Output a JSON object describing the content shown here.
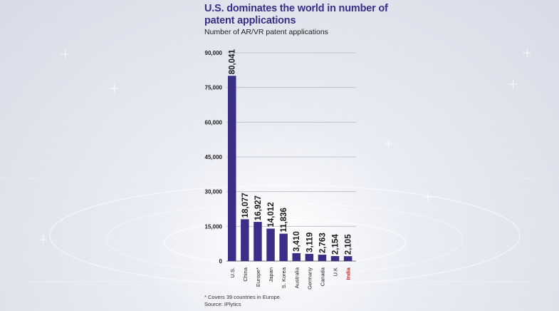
{
  "title": "U.S. dominates the world in number of patent applications",
  "subtitle": "Number of AR/VR patent applications",
  "colors": {
    "bar": "#3b2e86",
    "title": "#3b2e86",
    "highlight_label": "#cc1f1f",
    "text": "#222222"
  },
  "chart_data": {
    "type": "bar",
    "categories": [
      "U.S.",
      "China",
      "Europe*",
      "Japan",
      "S. Korea",
      "Australia",
      "Germany",
      "Canada",
      "U.K",
      "India"
    ],
    "values": [
      80041,
      18077,
      16927,
      14012,
      11836,
      3410,
      3119,
      2763,
      2154,
      2105
    ],
    "value_labels": [
      "80,041",
      "18,077",
      "16,927",
      "14,012",
      "11,836",
      "3,410",
      "3,119",
      "2,763",
      "2,154",
      "2,105"
    ],
    "highlight_category": "India",
    "yticks": [
      "0",
      "15,000",
      "30,000",
      "45,000",
      "60,000",
      "75,000",
      "90,000"
    ],
    "ylim": [
      0,
      90000
    ],
    "grid": true,
    "xlabel": "",
    "ylabel": ""
  },
  "footnotes": {
    "note": "* Covers 39 countries in Europe.",
    "source": "Source: IPlytics"
  }
}
